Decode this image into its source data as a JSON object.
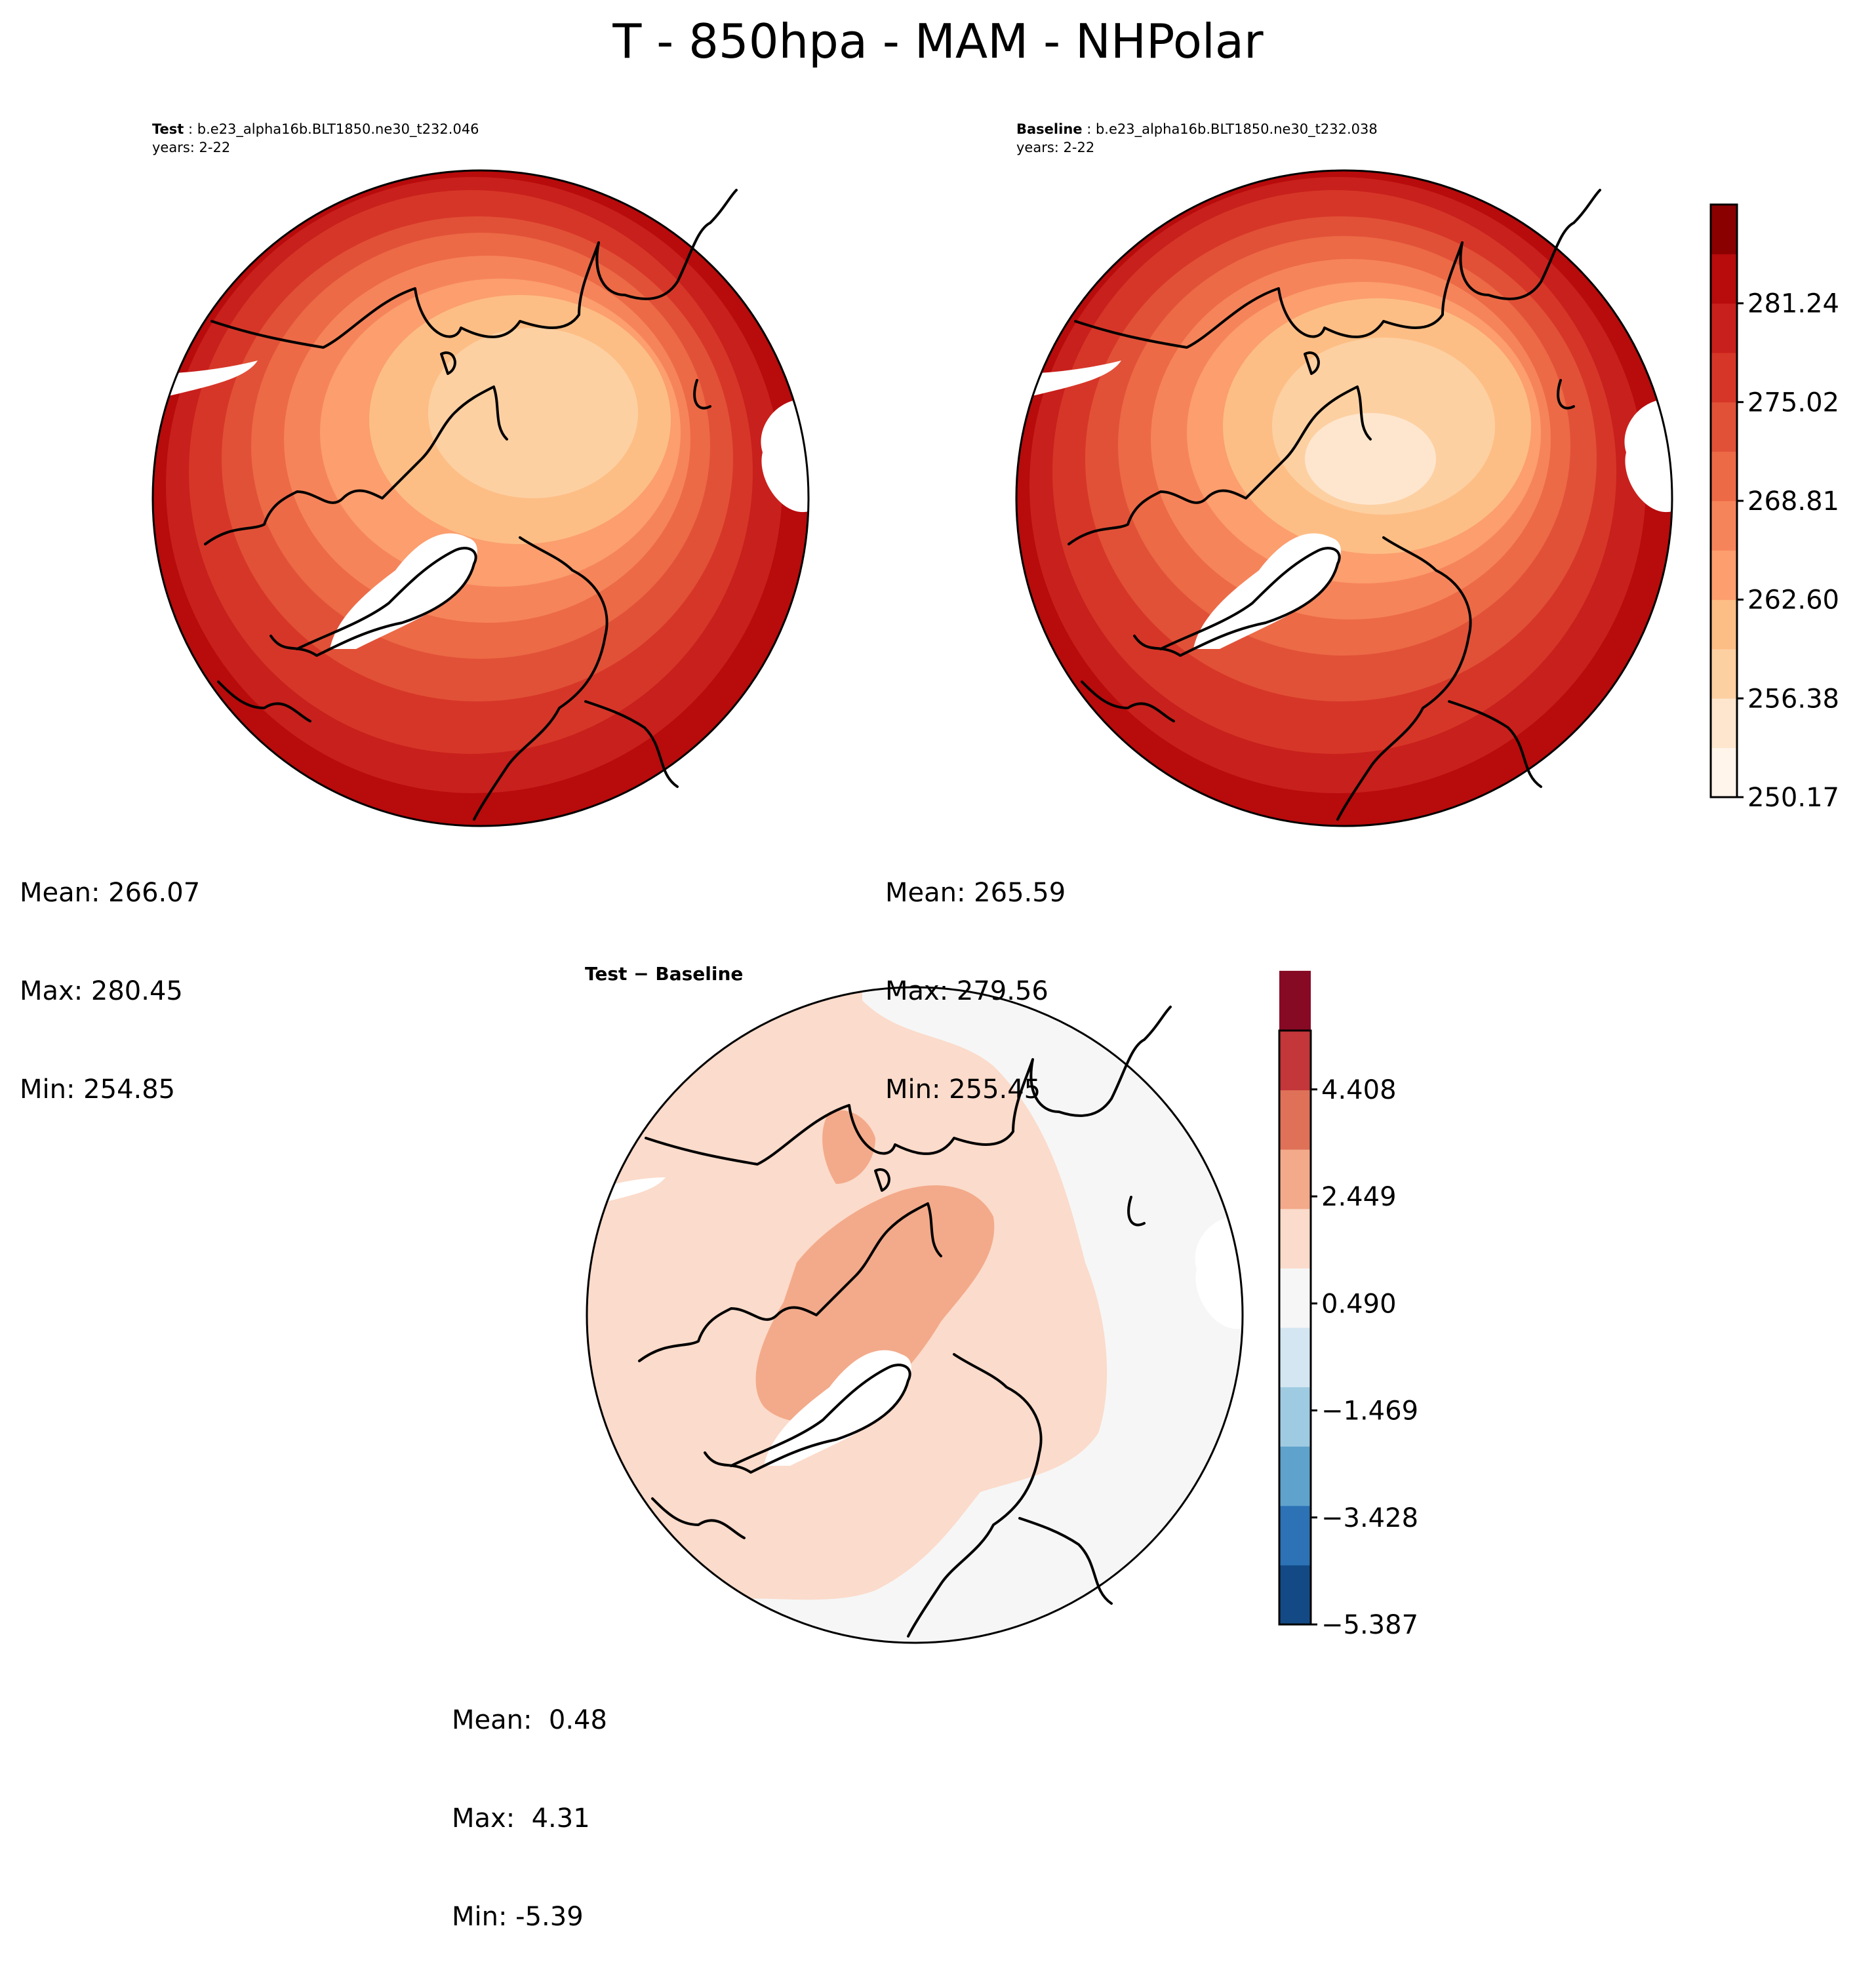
{
  "figure": {
    "title": "T - 850hpa - MAM - NHPolar"
  },
  "panels": {
    "test": {
      "label": "Test",
      "case": "b.e23_alpha16b.BLT1850.ne30_t232.046",
      "years": "years: 2-22",
      "mean": "Mean: 266.07",
      "max": "Max: 280.45",
      "min": "Min: 254.85"
    },
    "baseline": {
      "label": "Baseline",
      "case": "b.e23_alpha16b.BLT1850.ne30_t232.038",
      "years": "years: 2-22",
      "mean": "Mean: 265.59",
      "max": "Max: 279.56",
      "min": "Min: 255.45"
    },
    "diff": {
      "title": "Test − Baseline",
      "mean": "Mean:  0.48",
      "max": "Max:  4.31",
      "min": "Min: -5.39"
    }
  },
  "colorbars": {
    "abs": {
      "ticks": [
        "250.17",
        "256.38",
        "262.60",
        "268.81",
        "275.02",
        "281.24"
      ],
      "levels": 13,
      "colors": [
        "#fff5eb",
        "#fee6ce",
        "#fdd0a2",
        "#fdbe85",
        "#fc9e6e",
        "#f6845a",
        "#ec6a46",
        "#e15137",
        "#d63628",
        "#c8201c",
        "#b80b0c",
        "#8a0000"
      ]
    },
    "diff": {
      "ticks": [
        "−5.387",
        "−3.428",
        "−1.469",
        "0.490",
        "2.449",
        "4.408"
      ],
      "colors": [
        "#134a85",
        "#2c72b5",
        "#5fa2cc",
        "#9fcbe2",
        "#d4e6f1",
        "#f6f6f6",
        "#fbdbcb",
        "#f3aa8a",
        "#de7158",
        "#c3363a",
        "#870a24"
      ]
    }
  },
  "chart_data": {
    "type": "heatmap",
    "variable": "T",
    "level": "850hpa",
    "season": "MAM",
    "region": "NHPolar",
    "test_range": [
      254.85,
      280.45
    ],
    "baseline_range": [
      255.45,
      279.56
    ],
    "diff_range": [
      -5.39,
      4.31
    ]
  }
}
